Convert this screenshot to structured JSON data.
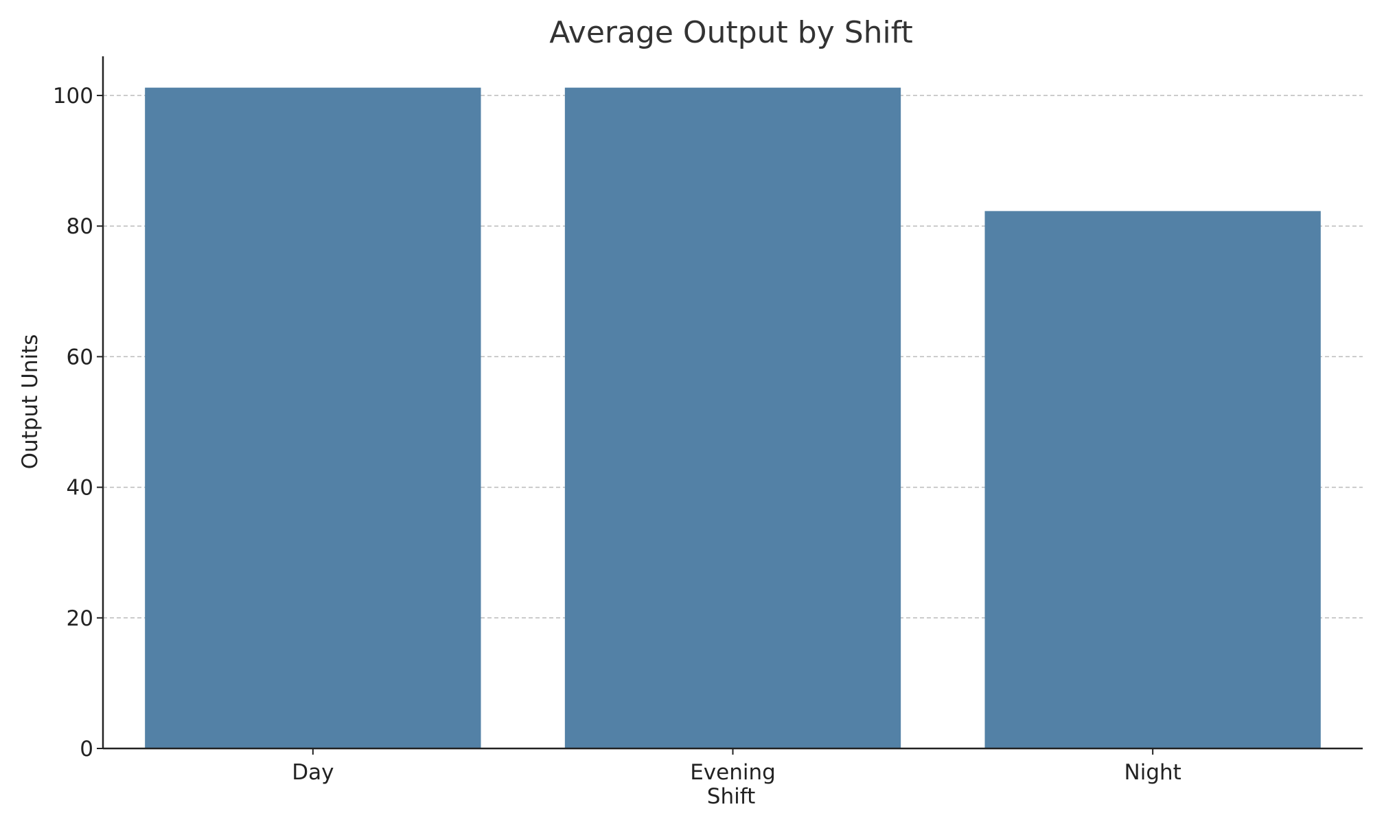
{
  "chart_data": {
    "type": "bar",
    "title": "Average Output by Shift",
    "xlabel": "Shift",
    "ylabel": "Output Units",
    "categories": [
      "Day",
      "Evening",
      "Night"
    ],
    "values": [
      101.2,
      101.2,
      82.3
    ],
    "ylim": [
      0,
      106
    ],
    "yticks": [
      0,
      20,
      40,
      60,
      80,
      100
    ],
    "ytick_labels": [
      "0",
      "20",
      "40",
      "60",
      "80",
      "100"
    ],
    "grid": "y",
    "legend": "none",
    "bar_color": "#5381a6"
  }
}
